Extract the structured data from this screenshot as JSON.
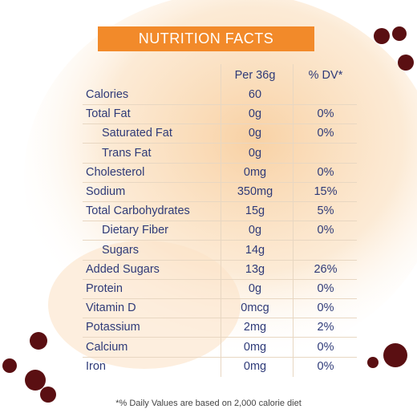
{
  "title": "NUTRITION FACTS",
  "table": {
    "header": [
      "Per 36g",
      "% DV*"
    ],
    "rows": [
      [
        "Calories",
        "60",
        null
      ],
      [
        "Total Fat",
        "0g",
        "0%"
      ],
      [
        "Saturated Fat",
        "0g",
        "0%"
      ],
      [
        "Trans Fat",
        "0g",
        null
      ],
      [
        "Cholesterol",
        "0mg",
        "0%"
      ],
      [
        "Sodium",
        "350mg",
        "15%"
      ],
      [
        "Total Carbohydrates",
        "15g",
        "5%"
      ],
      [
        "Dietary Fiber",
        "0g",
        "0%"
      ],
      [
        "Sugars",
        "14g",
        null
      ],
      [
        "Added Sugars",
        "13g",
        "26%"
      ],
      [
        "Protein",
        "0g",
        "0%"
      ],
      [
        "Vitamin D",
        "0mcg",
        "0%"
      ],
      [
        "Potassium",
        "2mg",
        "2%"
      ],
      [
        "Calcium",
        "0mg",
        "0%"
      ],
      [
        "Iron",
        "0mg",
        "0%"
      ]
    ]
  },
  "footnote": "*% Daily Values are based on 2,000 calorie diet"
}
